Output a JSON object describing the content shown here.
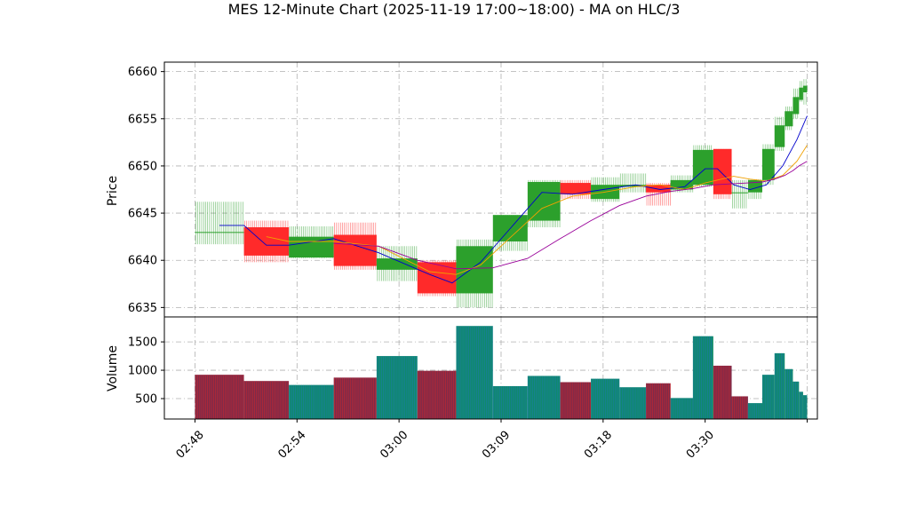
{
  "title": "MES 12-Minute Chart (2025-11-19 17:00~18:00) - MA on HLC/3",
  "colors": {
    "up": "#2ca02c",
    "down": "#ff2a2a",
    "ma_fast": "#0000cc",
    "ma_mid": "#f0a000",
    "ma_slow": "#990099",
    "vol_up_edge": "#1f77b4",
    "vol_down_edge": "#d62728",
    "grid": "#b0b0b0"
  },
  "chart_data": [
    {
      "type": "candlestick",
      "ylabel": "Price",
      "ylim": [
        6634,
        6661
      ],
      "yticks": [
        6635,
        6640,
        6645,
        6650,
        6655,
        6660
      ],
      "xlim": [
        -1.5,
        30.5
      ],
      "xtick_positions": [
        0,
        5,
        10,
        15,
        20,
        25,
        30
      ],
      "xtick_labels": [
        "02:48",
        "02:54",
        "03:00",
        "03:09",
        "03:18",
        "03:30",
        ""
      ],
      "grid": true,
      "candles": [
        {
          "x": 0,
          "w": 2.4,
          "o": 6643.0,
          "h": 6646.2,
          "l": 6641.7,
          "c": 6643.0
        },
        {
          "x": 2.4,
          "w": 2.2,
          "o": 6643.5,
          "h": 6644.2,
          "l": 6639.8,
          "c": 6640.5
        },
        {
          "x": 4.6,
          "w": 2.2,
          "o": 6640.3,
          "h": 6643.6,
          "l": 6640.2,
          "c": 6642.5
        },
        {
          "x": 6.8,
          "w": 2.1,
          "o": 6642.7,
          "h": 6644.0,
          "l": 6639.0,
          "c": 6639.4
        },
        {
          "x": 8.9,
          "w": 2.0,
          "o": 6639.0,
          "h": 6641.5,
          "l": 6637.8,
          "c": 6640.2
        },
        {
          "x": 10.9,
          "w": 1.9,
          "o": 6639.8,
          "h": 6640.0,
          "l": 6636.2,
          "c": 6636.5
        },
        {
          "x": 12.8,
          "w": 1.8,
          "o": 6636.5,
          "h": 6642.2,
          "l": 6635.0,
          "c": 6641.5
        },
        {
          "x": 14.6,
          "w": 1.7,
          "o": 6642.0,
          "h": 6644.8,
          "l": 6641.0,
          "c": 6644.8
        },
        {
          "x": 16.3,
          "w": 1.6,
          "o": 6644.2,
          "h": 6648.5,
          "l": 6643.5,
          "c": 6648.3
        },
        {
          "x": 17.9,
          "w": 1.5,
          "o": 6648.2,
          "h": 6648.5,
          "l": 6646.5,
          "c": 6647.0
        },
        {
          "x": 19.4,
          "w": 1.4,
          "o": 6646.5,
          "h": 6648.8,
          "l": 6646.2,
          "c": 6648.0
        },
        {
          "x": 20.8,
          "w": 1.3,
          "o": 6647.8,
          "h": 6649.2,
          "l": 6647.2,
          "c": 6648.0
        },
        {
          "x": 22.1,
          "w": 1.2,
          "o": 6648.0,
          "h": 6648.2,
          "l": 6645.8,
          "c": 6647.2
        },
        {
          "x": 23.3,
          "w": 1.1,
          "o": 6647.5,
          "h": 6649.0,
          "l": 6647.2,
          "c": 6648.5
        },
        {
          "x": 24.4,
          "w": 1.0,
          "o": 6648.0,
          "h": 6652.2,
          "l": 6647.8,
          "c": 6651.7
        },
        {
          "x": 25.4,
          "w": 0.9,
          "o": 6651.8,
          "h": 6651.8,
          "l": 6646.5,
          "c": 6647.0
        },
        {
          "x": 26.3,
          "w": 0.8,
          "o": 6647.2,
          "h": 6648.5,
          "l": 6645.5,
          "c": 6647.2
        },
        {
          "x": 27.1,
          "w": 0.7,
          "o": 6647.2,
          "h": 6648.6,
          "l": 6646.5,
          "c": 6648.5
        },
        {
          "x": 27.8,
          "w": 0.6,
          "o": 6648.5,
          "h": 6652.3,
          "l": 6648.0,
          "c": 6651.8
        },
        {
          "x": 28.4,
          "w": 0.5,
          "o": 6652.0,
          "h": 6655.2,
          "l": 6651.6,
          "c": 6654.3
        },
        {
          "x": 28.9,
          "w": 0.4,
          "o": 6654.2,
          "h": 6656.3,
          "l": 6653.8,
          "c": 6655.8
        },
        {
          "x": 29.3,
          "w": 0.3,
          "o": 6655.5,
          "h": 6658.2,
          "l": 6655.0,
          "c": 6657.3
        },
        {
          "x": 29.6,
          "w": 0.2,
          "o": 6657.0,
          "h": 6659.0,
          "l": 6656.8,
          "c": 6658.3
        },
        {
          "x": 29.8,
          "w": 0.2,
          "o": 6657.8,
          "h": 6659.2,
          "l": 6656.5,
          "c": 6658.5
        }
      ],
      "series": [
        {
          "key": "ma_fast",
          "x": [
            1.2,
            2.4,
            3.5,
            4.6,
            6.8,
            9.0,
            11.5,
            12.6,
            14.0,
            15.5,
            17.0,
            18.5,
            20.0,
            21.6,
            22.8,
            24.0,
            25.0,
            25.6,
            26.4,
            27.2,
            28.0,
            28.8,
            29.5,
            30.0
          ],
          "y": [
            6643.7,
            6643.7,
            6641.6,
            6641.6,
            6642.3,
            6640.8,
            6638.5,
            6637.6,
            6639.8,
            6643.5,
            6647.2,
            6647.0,
            6647.5,
            6648.0,
            6647.5,
            6647.8,
            6649.7,
            6649.7,
            6648.0,
            6647.5,
            6648.0,
            6650.0,
            6652.8,
            6655.3
          ]
        },
        {
          "key": "ma_mid",
          "x": [
            3.5,
            4.6,
            6.8,
            9.0,
            11.5,
            12.8,
            14.0,
            15.5,
            17.0,
            18.5,
            20.0,
            21.6,
            22.8,
            24.0,
            25.0,
            26.4,
            27.2,
            28.0,
            28.8,
            29.5,
            30.0
          ],
          "y": [
            6642.5,
            6642.0,
            6642.0,
            6641.5,
            6638.8,
            6638.5,
            6639.5,
            6642.5,
            6645.5,
            6646.8,
            6647.2,
            6647.8,
            6648.0,
            6647.5,
            6648.2,
            6648.9,
            6648.6,
            6648.4,
            6649.0,
            6650.5,
            6652.2
          ]
        },
        {
          "key": "ma_slow",
          "x": [
            6.8,
            9.0,
            10.9,
            12.8,
            14.6,
            16.3,
            17.9,
            19.4,
            20.8,
            22.1,
            23.3,
            24.4,
            25.4,
            26.3,
            27.1,
            27.8,
            28.4,
            28.9,
            29.3,
            29.6,
            30.0
          ],
          "y": [
            6641.8,
            6641.5,
            6640.0,
            6639.1,
            6639.2,
            6640.2,
            6642.3,
            6644.2,
            6645.8,
            6646.8,
            6647.3,
            6647.6,
            6648.0,
            6648.1,
            6648.2,
            6648.3,
            6648.6,
            6649.0,
            6649.5,
            6650.0,
            6650.5
          ]
        }
      ]
    },
    {
      "type": "bar",
      "ylabel": "Volume",
      "ylim": [
        140,
        1940
      ],
      "yticks": [
        500,
        1000,
        1500
      ],
      "grid": true,
      "bars": [
        {
          "x": 0,
          "w": 2.4,
          "v": 920,
          "up": false
        },
        {
          "x": 2.4,
          "w": 2.2,
          "v": 810,
          "up": false
        },
        {
          "x": 4.6,
          "w": 2.2,
          "v": 740,
          "up": true
        },
        {
          "x": 6.8,
          "w": 2.1,
          "v": 870,
          "up": false
        },
        {
          "x": 8.9,
          "w": 2.0,
          "v": 1250,
          "up": true
        },
        {
          "x": 10.9,
          "w": 1.9,
          "v": 990,
          "up": false
        },
        {
          "x": 12.8,
          "w": 1.8,
          "v": 1780,
          "up": true
        },
        {
          "x": 14.6,
          "w": 1.7,
          "v": 720,
          "up": true
        },
        {
          "x": 16.3,
          "w": 1.6,
          "v": 900,
          "up": true
        },
        {
          "x": 17.9,
          "w": 1.5,
          "v": 790,
          "up": false
        },
        {
          "x": 19.4,
          "w": 1.4,
          "v": 850,
          "up": true
        },
        {
          "x": 20.8,
          "w": 1.3,
          "v": 700,
          "up": true
        },
        {
          "x": 22.1,
          "w": 1.2,
          "v": 770,
          "up": false
        },
        {
          "x": 23.3,
          "w": 1.1,
          "v": 510,
          "up": true
        },
        {
          "x": 24.4,
          "w": 1.0,
          "v": 1600,
          "up": true
        },
        {
          "x": 25.4,
          "w": 0.9,
          "v": 1080,
          "up": false
        },
        {
          "x": 26.3,
          "w": 0.8,
          "v": 540,
          "up": false
        },
        {
          "x": 27.1,
          "w": 0.7,
          "v": 420,
          "up": true
        },
        {
          "x": 27.8,
          "w": 0.6,
          "v": 920,
          "up": true
        },
        {
          "x": 28.4,
          "w": 0.5,
          "v": 1300,
          "up": true
        },
        {
          "x": 28.9,
          "w": 0.4,
          "v": 1020,
          "up": true
        },
        {
          "x": 29.3,
          "w": 0.3,
          "v": 800,
          "up": true
        },
        {
          "x": 29.6,
          "w": 0.2,
          "v": 620,
          "up": true
        },
        {
          "x": 29.8,
          "w": 0.2,
          "v": 560,
          "up": true
        }
      ]
    }
  ]
}
